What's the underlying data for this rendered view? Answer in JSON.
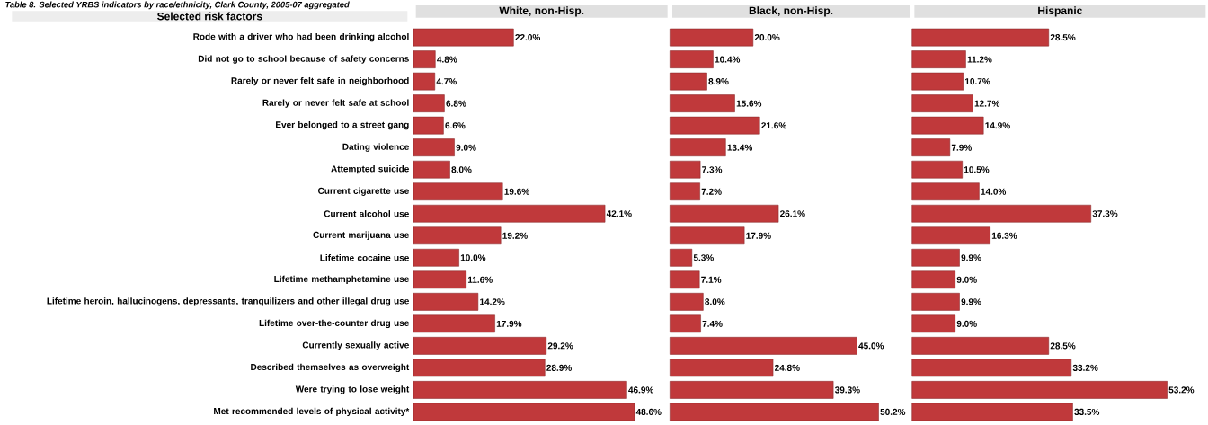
{
  "chart_data": [
    {
      "type": "bar",
      "orientation": "horizontal",
      "title": "White, non-Hisp.",
      "ylabel": "Selected risk factors",
      "annotations": [
        "Table 8. Selected YRBS indicators by race/ethnicity, Clark County, 2005-07 aggregated"
      ],
      "tick_labels": "y",
      "color": "#c0393b",
      "categories": [
        "Rode with a driver who had been drinking alcohol",
        "Did not go to school because of safety concerns",
        "Rarely or never felt safe in neighborhood",
        "Rarely or never felt safe at school",
        "Ever belonged to a street gang",
        "Dating violence",
        "Attempted suicide",
        "Current cigarette use",
        "Current alcohol use",
        "Current marijuana use",
        "Lifetime cocaine use",
        "Lifetime methamphetamine use",
        "Lifetime heroin, hallucinogens, depressants, tranquilizers and other illegal drug use",
        "Lifetime over-the-counter drug use",
        "Currently sexually active",
        "Described themselves as overweight",
        "Were trying to lose weight",
        "Met recommended levels of physical activity*"
      ],
      "values": [
        22.0,
        4.8,
        4.7,
        6.8,
        6.6,
        9.0,
        8.0,
        19.6,
        42.1,
        19.2,
        10.0,
        11.6,
        14.2,
        17.9,
        29.2,
        28.9,
        46.9,
        48.6
      ],
      "value_labels": [
        "22.0%",
        "4.8%",
        "4.7%",
        "6.8%",
        "6.6%",
        "9.0%",
        "8.0%",
        "19.6%",
        "42.1%",
        "19.2%",
        "10.0%",
        "11.6%",
        "14.2%",
        "17.9%",
        "29.2%",
        "28.9%",
        "46.9%",
        "48.6%"
      ]
    },
    {
      "type": "bar",
      "orientation": "horizontal",
      "title": "Black, non-Hisp.",
      "tick_labels": false,
      "color": "#c0393b",
      "values": [
        20.0,
        10.4,
        8.9,
        15.6,
        21.6,
        13.4,
        7.3,
        7.2,
        26.1,
        17.9,
        5.3,
        7.1,
        8.0,
        7.4,
        45.0,
        24.8,
        39.3,
        50.2
      ],
      "value_labels": [
        "20.0%",
        "10.4%",
        "8.9%",
        "15.6%",
        "21.6%",
        "13.4%",
        "7.3%",
        "7.2%",
        "26.1%",
        "17.9%",
        "5.3%",
        "7.1%",
        "8.0%",
        "7.4%",
        "45.0%",
        "24.8%",
        "39.3%",
        "50.2%"
      ]
    },
    {
      "type": "bar",
      "orientation": "horizontal",
      "title": "Hispanic",
      "tick_labels": false,
      "color": "#c0393b",
      "values": [
        28.5,
        11.2,
        10.7,
        12.7,
        14.9,
        7.9,
        10.5,
        14.0,
        37.3,
        16.3,
        9.9,
        9.0,
        9.9,
        9.0,
        28.5,
        33.2,
        53.2,
        33.5
      ],
      "value_labels": [
        "28.5%",
        "11.2%",
        "10.7%",
        "12.7%",
        "14.9%",
        "7.9%",
        "10.5%",
        "14.0%",
        "37.3%",
        "16.3%",
        "9.9%",
        "9.0%",
        "9.9%",
        "9.0%",
        "28.5%",
        "33.2%",
        "53.2%",
        "33.5%"
      ]
    }
  ]
}
